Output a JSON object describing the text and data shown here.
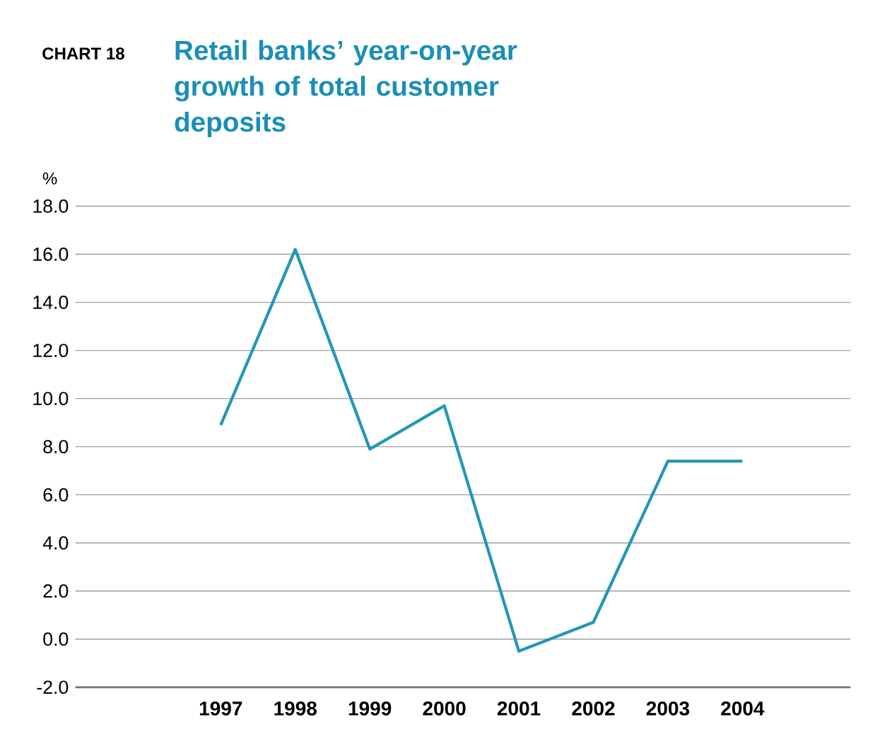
{
  "chart_data": {
    "type": "line",
    "title": "Retail banks’ year-on-year growth of total customer deposits",
    "annotations": [
      "CHART 18"
    ],
    "ylabel": "%",
    "categories": [
      "1997",
      "1998",
      "1999",
      "2000",
      "2001",
      "2002",
      "2003",
      "2004"
    ],
    "series": [
      {
        "color": "#2596b8",
        "values": [
          8.9,
          16.2,
          7.9,
          9.7,
          -0.5,
          0.7,
          7.4,
          7.4
        ]
      }
    ],
    "ylim": [
      -2,
      18
    ],
    "yticks": [
      {
        "value": -2,
        "label": "-2.0"
      },
      {
        "value": 0,
        "label": "0.0"
      },
      {
        "value": 2,
        "label": "2.0"
      },
      {
        "value": 4,
        "label": "4.0"
      },
      {
        "value": 6,
        "label": "6.0"
      },
      {
        "value": 8,
        "label": "8.0"
      },
      {
        "value": 10,
        "label": "10.0"
      },
      {
        "value": 12,
        "label": "12.0"
      },
      {
        "value": 14,
        "label": "14.0"
      },
      {
        "value": 16,
        "label": "16.0"
      },
      {
        "value": 18,
        "label": "18.0"
      }
    ],
    "grid": "y",
    "marker": "none",
    "line_style": "solid"
  }
}
